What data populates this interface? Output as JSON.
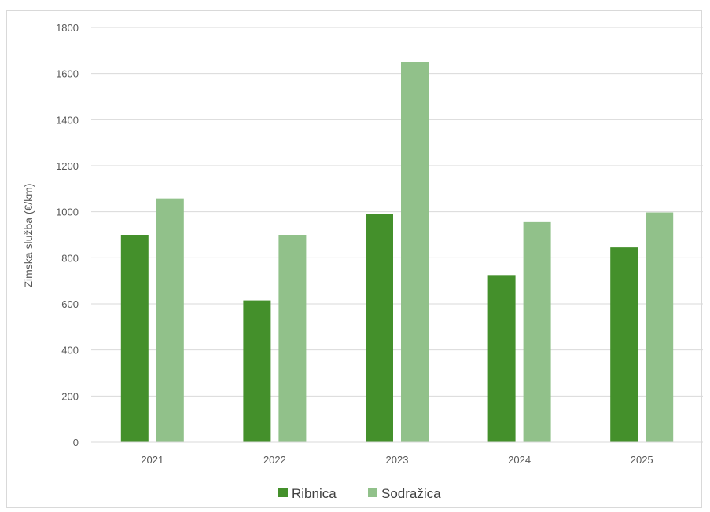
{
  "chart_data": {
    "type": "bar",
    "categories": [
      "2021",
      "2022",
      "2023",
      "2024",
      "2025"
    ],
    "series": [
      {
        "name": "Ribnica",
        "color": "#44902b",
        "values": [
          900,
          615,
          990,
          725,
          845
        ]
      },
      {
        "name": "Sodražica",
        "color": "#91c18a",
        "values": [
          1058,
          900,
          1650,
          955,
          997
        ]
      }
    ],
    "title": "",
    "xlabel": "",
    "ylabel": "Zimska služba (€/km)",
    "ylim": [
      0,
      1800
    ],
    "yticks": [
      "0",
      "200",
      "400",
      "600",
      "800",
      "1000",
      "1200",
      "1400",
      "1600",
      "1800"
    ],
    "grid": true,
    "legend_position": "bottom"
  }
}
